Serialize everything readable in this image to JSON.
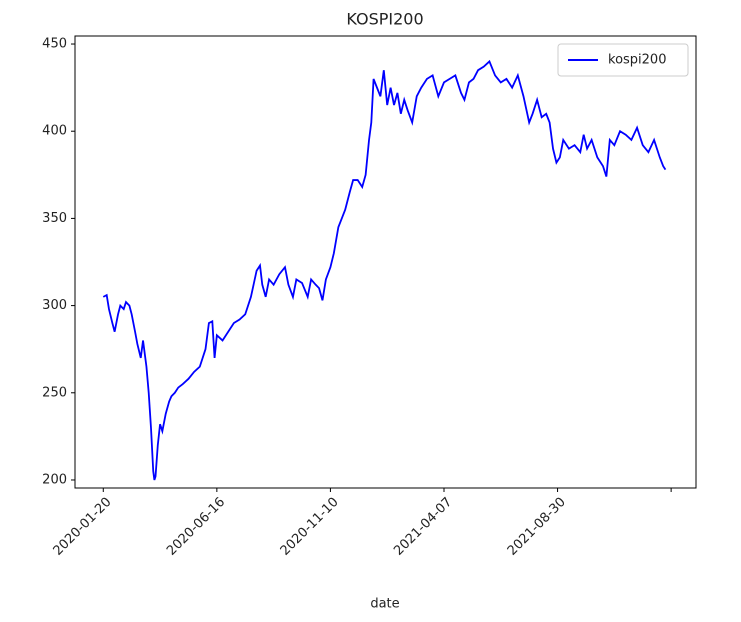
{
  "chart_data": {
    "type": "line",
    "title": "KOSPI200",
    "x_label": "date",
    "x": [
      0,
      3,
      5,
      8,
      10,
      13,
      15,
      18,
      20,
      23,
      25,
      28,
      30,
      33,
      35,
      38,
      40,
      42,
      44,
      45,
      46,
      48,
      50,
      52,
      55,
      58,
      60,
      63,
      66,
      70,
      75,
      80,
      85,
      90,
      93,
      96,
      98,
      100,
      105,
      110,
      115,
      120,
      125,
      130,
      135,
      138,
      140,
      143,
      146,
      150,
      155,
      160,
      163,
      167,
      170,
      175,
      180,
      183,
      187,
      190,
      193,
      196,
      200,
      203,
      207,
      210,
      213,
      217,
      220,
      224,
      228,
      231,
      234,
      236,
      238,
      241,
      244,
      247,
      250,
      253,
      256,
      259,
      262,
      265,
      268,
      272,
      276,
      280,
      285,
      290,
      295,
      300,
      305,
      310,
      315,
      318,
      322,
      326,
      330,
      335,
      340,
      345,
      350,
      355,
      360,
      365,
      370,
      375,
      378,
      382,
      386,
      390,
      393,
      396,
      399,
      402,
      405,
      410,
      415,
      420,
      423,
      426,
      430,
      435,
      440,
      443,
      446,
      450,
      455,
      460,
      465,
      470,
      475,
      480,
      485,
      490,
      493,
      495
    ],
    "series": [
      {
        "name": "kospi200",
        "color": "#0000ff",
        "values": [
          305,
          306,
          298,
          290,
          285,
          295,
          300,
          298,
          302,
          300,
          295,
          285,
          278,
          270,
          280,
          265,
          250,
          230,
          205,
          200,
          202,
          220,
          232,
          228,
          238,
          245,
          248,
          250,
          253,
          255,
          258,
          262,
          265,
          275,
          290,
          291,
          270,
          283,
          280,
          285,
          290,
          292,
          295,
          305,
          320,
          323,
          312,
          305,
          315,
          312,
          318,
          322,
          312,
          305,
          315,
          313,
          305,
          315,
          312,
          310,
          303,
          315,
          322,
          330,
          345,
          350,
          355,
          365,
          372,
          372,
          368,
          375,
          395,
          405,
          430,
          425,
          420,
          435,
          415,
          425,
          415,
          422,
          410,
          418,
          412,
          405,
          420,
          425,
          430,
          432,
          420,
          428,
          430,
          432,
          422,
          418,
          428,
          430,
          435,
          437,
          440,
          432,
          428,
          430,
          425,
          432,
          420,
          405,
          410,
          418,
          408,
          410,
          405,
          390,
          382,
          385,
          395,
          390,
          392,
          388,
          398,
          390,
          395,
          385,
          380,
          374,
          395,
          392,
          400,
          398,
          395,
          402,
          392,
          388,
          395,
          385,
          380,
          378
        ]
      }
    ],
    "xlim": [
      -24.9,
      521.9
    ],
    "xticks": [
      {
        "value": 0,
        "label": "2020-01-20"
      },
      {
        "value": 100,
        "label": "2020-06-16"
      },
      {
        "value": 200,
        "label": "2020-11-10"
      },
      {
        "value": 300,
        "label": "2021-04-07"
      },
      {
        "value": 400,
        "label": "2021-08-30"
      },
      {
        "value": 500,
        "label": null
      }
    ],
    "ylim": [
      195.4,
      454.6
    ],
    "yticks": [
      200,
      250,
      300,
      350,
      400,
      450
    ],
    "legend": "upper right",
    "grid": false
  }
}
